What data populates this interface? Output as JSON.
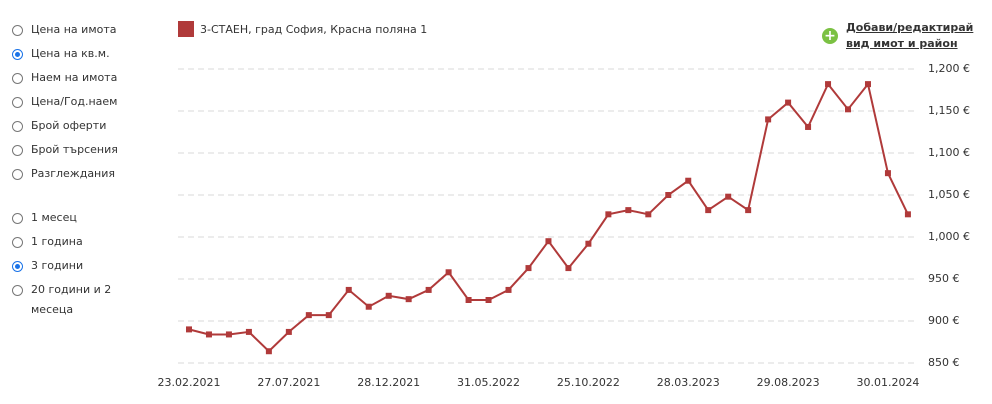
{
  "sidebar": {
    "metric_options": [
      "Цена на имота",
      "Цена на кв.м.",
      "Наем на имота",
      "Цена/Год.наем",
      "Брой оферти",
      "Брой търсения",
      "Разглеждания"
    ],
    "metric_selected": 1,
    "period_options": [
      "1 месец",
      "1 година",
      "3 години",
      "20 години и 2 месеца"
    ],
    "period_selected": 2
  },
  "link": {
    "line1": "Добави/редактирай",
    "line2": "вид имот и район"
  },
  "chart_data": {
    "type": "line",
    "categories": [
      "23.02.2021",
      null,
      null,
      null,
      null,
      "27.07.2021",
      null,
      null,
      null,
      null,
      "28.12.2021",
      null,
      null,
      null,
      null,
      "31.05.2022",
      null,
      null,
      null,
      null,
      "25.10.2022",
      null,
      null,
      null,
      null,
      "28.03.2023",
      null,
      null,
      null,
      null,
      "29.08.2023",
      null,
      null,
      null,
      null,
      "30.01.2024",
      null
    ],
    "series": [
      {
        "name": "3-СТАЕН, град София, Красна поляна 1",
        "color": "#b03a3a",
        "values": [
          890,
          884,
          884,
          887,
          864,
          887,
          907,
          907,
          937,
          917,
          930,
          926,
          937,
          958,
          925,
          925,
          937,
          963,
          995,
          963,
          992,
          1027,
          1032,
          1027,
          1050,
          1067,
          1032,
          1048,
          1032,
          1140,
          1160,
          1131,
          1182,
          1152,
          1182,
          1076,
          1027
        ]
      }
    ],
    "ylim": [
      850,
      1200
    ],
    "yticks": [
      {
        "value": 850,
        "label": "850 €"
      },
      {
        "value": 900,
        "label": "900 €"
      },
      {
        "value": 950,
        "label": "950 €"
      },
      {
        "value": 1000,
        "label": "1,000 €"
      },
      {
        "value": 1050,
        "label": "1,050 €"
      },
      {
        "value": 1100,
        "label": "1,100 €"
      },
      {
        "value": 1150,
        "label": "1,150 €"
      },
      {
        "value": 1200,
        "label": "1,200 €"
      }
    ],
    "grid": true
  }
}
